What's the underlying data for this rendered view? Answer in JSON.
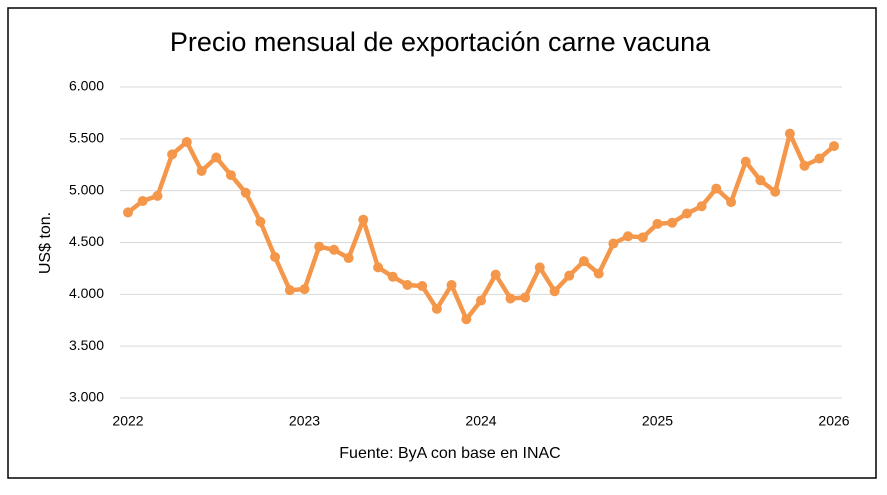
{
  "chart_data": {
    "type": "line",
    "title": "Precio mensual de exportación carne vacuna",
    "y_label": "US$ ton.",
    "source": "Fuente: ByA con base en INAC",
    "x": [
      2022,
      2022.083,
      2022.167,
      2022.25,
      2022.333,
      2022.417,
      2022.5,
      2022.583,
      2022.667,
      2022.75,
      2022.833,
      2022.917,
      2023,
      2023.083,
      2023.167,
      2023.25,
      2023.333,
      2023.417,
      2023.5,
      2023.583,
      2023.667,
      2023.75,
      2023.833,
      2023.917,
      2024,
      2024.083,
      2024.167,
      2024.25,
      2024.333,
      2024.417,
      2024.5,
      2024.583,
      2024.667,
      2024.75,
      2024.833,
      2024.917,
      2025,
      2025.083,
      2025.167,
      2025.25,
      2025.333,
      2025.417,
      2025.5,
      2025.583,
      2025.667,
      2025.75,
      2025.833,
      2025.917,
      2026
    ],
    "series": [
      {
        "name": "Precio",
        "color": "#f4974b",
        "values": [
          4790,
          4900,
          4950,
          5350,
          5470,
          5190,
          5320,
          5150,
          4980,
          4700,
          4360,
          4040,
          4050,
          4460,
          4430,
          4350,
          4720,
          4260,
          4170,
          4090,
          4080,
          3860,
          4090,
          3760,
          3940,
          4190,
          3960,
          3970,
          4260,
          4030,
          4180,
          4320,
          4200,
          4490,
          4560,
          4550,
          4680,
          4690,
          4780,
          4850,
          5020,
          4890,
          5280,
          5100,
          4990,
          5550,
          5240,
          5310,
          5430
        ]
      }
    ],
    "xlim": [
      2022,
      2026
    ],
    "xticks": [
      2022,
      2023,
      2024,
      2025,
      2026
    ],
    "ylim": [
      3000,
      6000
    ],
    "yticks": [
      {
        "value": 3000,
        "label": "3.000"
      },
      {
        "value": 3500,
        "label": "3.500"
      },
      {
        "value": 4000,
        "label": "4.000"
      },
      {
        "value": 4500,
        "label": "4.500"
      },
      {
        "value": 5000,
        "label": "5.000"
      },
      {
        "value": 5500,
        "label": "5.500"
      },
      {
        "value": 6000,
        "label": "6.000"
      }
    ],
    "grid": true
  }
}
